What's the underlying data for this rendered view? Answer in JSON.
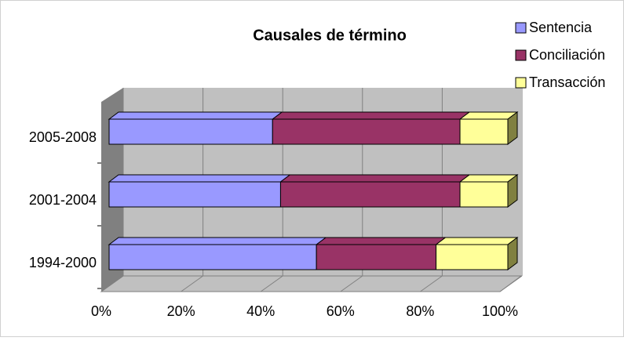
{
  "chart_data": {
    "type": "bar",
    "title": "Causales de término",
    "categories": [
      "2005-2008",
      "2001-2004",
      "1994-2000"
    ],
    "series": [
      {
        "name": "Sentencia",
        "color": "#9999ff",
        "values": [
          41,
          43,
          52
        ]
      },
      {
        "name": "Conciliación",
        "color": "#993366",
        "values": [
          47,
          45,
          30
        ]
      },
      {
        "name": "Transacción",
        "color": "#ffff99",
        "values": [
          12,
          12,
          18
        ]
      }
    ],
    "xlim": [
      0,
      100
    ],
    "xticks": [
      {
        "value": 0,
        "label": "0%"
      },
      {
        "value": 20,
        "label": "20%"
      },
      {
        "value": 40,
        "label": "40%"
      },
      {
        "value": 60,
        "label": "60%"
      },
      {
        "value": 80,
        "label": "80%"
      },
      {
        "value": 100,
        "label": "100%"
      }
    ],
    "grid": true,
    "stacked": true,
    "legend": "top-right"
  }
}
